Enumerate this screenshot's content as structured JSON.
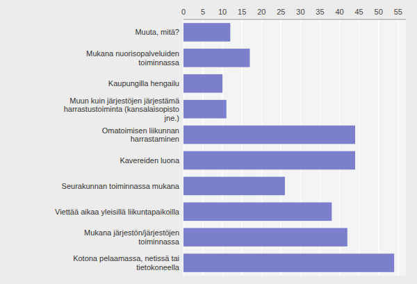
{
  "chart_data": {
    "type": "bar",
    "orientation": "horizontal",
    "categories": [
      "Muuta, mitä?",
      "Mukana nuorisopalveluiden\ntoiminnassa",
      "Kaupungilla hengailu",
      "Muun kuin järjestöjen järjestämä\nharrastustoiminta (kansalaisopisto\njne.)",
      "Omatoimisen liikunnan\nharrastaminen",
      "Kavereiden luona",
      "Seurakunnan toiminnassa mukana",
      "Viettää aikaa yleisillä liikuntapaikoilla",
      "Mukana järjestön/järjestöjen\ntoiminnassa",
      "Kotona pelaamassa, netissä tai\ntietokoneella"
    ],
    "values": [
      12,
      17,
      10,
      11,
      44,
      44,
      26,
      38,
      42,
      54
    ],
    "color": "#7b7fcc",
    "xlim": [
      0,
      57
    ],
    "xticks": [
      0,
      5,
      10,
      15,
      20,
      25,
      30,
      35,
      40,
      45,
      50,
      55
    ],
    "grid": true
  }
}
